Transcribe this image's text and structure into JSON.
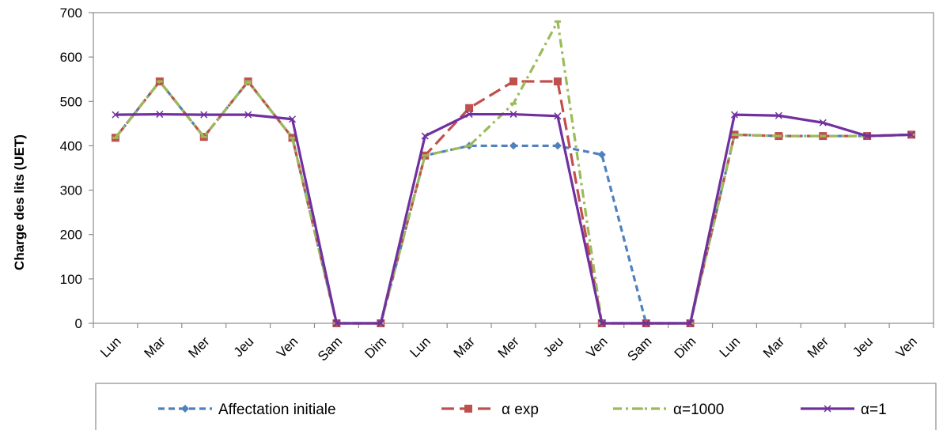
{
  "chart_data": {
    "type": "line",
    "title": "",
    "xlabel": "",
    "ylabel": "Charge des lits (UET)",
    "ylim": [
      0,
      700
    ],
    "yticks": [
      0,
      100,
      200,
      300,
      400,
      500,
      600,
      700
    ],
    "grid": false,
    "legend_position": "bottom",
    "categories": [
      "Lun",
      "Mar",
      "Mer",
      "Jeu",
      "Ven",
      "Sam",
      "Dim",
      "Lun",
      "Mar",
      "Mer",
      "Jeu",
      "Ven",
      "Sam",
      "Dim",
      "Lun",
      "Mar",
      "Mer",
      "Jeu",
      "Ven"
    ],
    "series": [
      {
        "name": "Affectation initiale",
        "color": "#4F81BD",
        "dash": "dashed",
        "marker": "diamond",
        "values": [
          418,
          545,
          420,
          545,
          418,
          0,
          0,
          378,
          400,
          400,
          400,
          380,
          0,
          0,
          425,
          422,
          422,
          422,
          425
        ]
      },
      {
        "name": "α exp",
        "color": "#C0504D",
        "dash": "longdash",
        "marker": "square",
        "values": [
          418,
          545,
          420,
          545,
          418,
          0,
          0,
          378,
          485,
          545,
          545,
          0,
          0,
          0,
          425,
          422,
          422,
          422,
          425
        ]
      },
      {
        "name": "α=1000",
        "color": "#9BBB59",
        "dash": "dashdot",
        "marker": "dash",
        "values": [
          418,
          545,
          420,
          545,
          418,
          0,
          0,
          378,
          400,
          495,
          680,
          0,
          0,
          0,
          425,
          422,
          422,
          422,
          425
        ]
      },
      {
        "name": "α=1",
        "color": "#7030A0",
        "dash": "solid",
        "marker": "x",
        "values": [
          470,
          471,
          470,
          470,
          460,
          0,
          0,
          422,
          471,
          471,
          467,
          0,
          0,
          0,
          470,
          468,
          452,
          422,
          425
        ]
      }
    ]
  }
}
